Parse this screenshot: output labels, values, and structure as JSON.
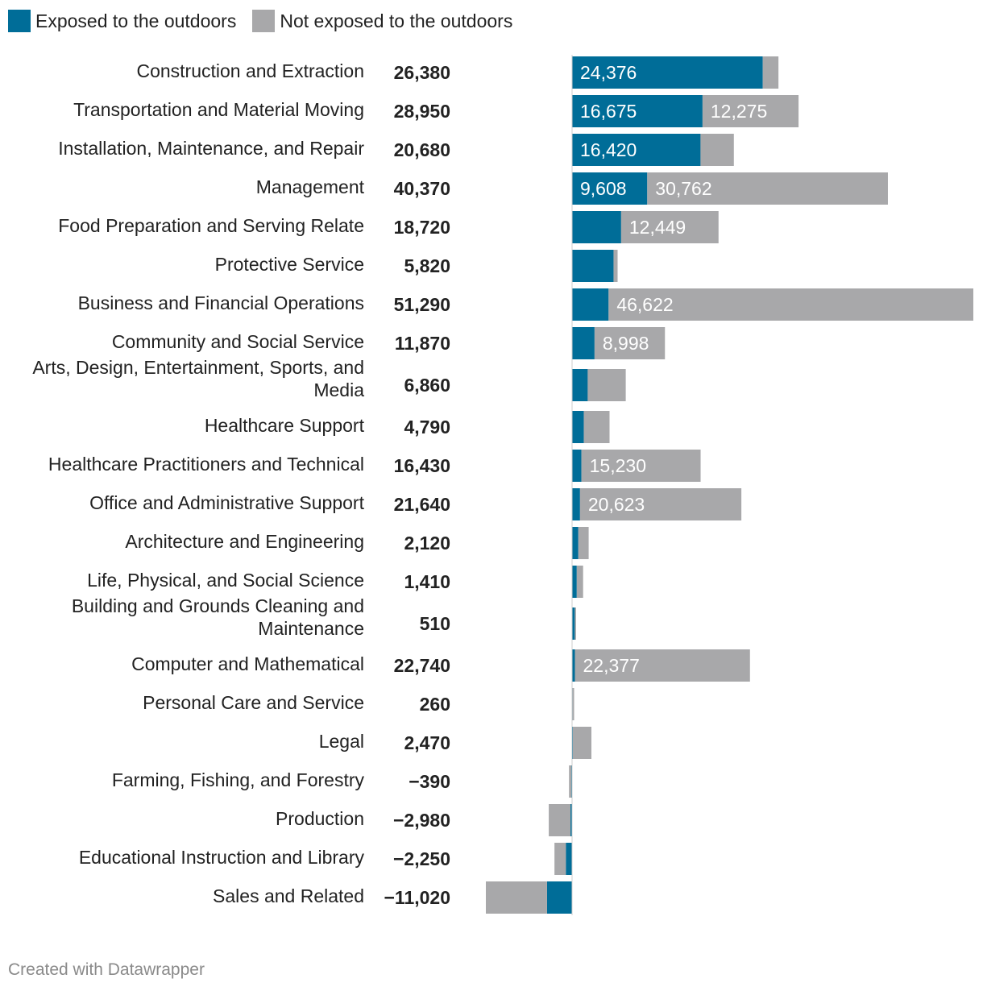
{
  "colors": {
    "exposed": "#006d98",
    "not_exposed": "#a8a8aa",
    "label_text": "#222222",
    "bar_label_text": "#ffffff"
  },
  "legend": {
    "exposed_label": "Exposed to the outdoors",
    "not_exposed_label": "Not exposed to the outdoors"
  },
  "footer": {
    "credit": "Created with Datawrapper"
  },
  "chart_data": {
    "type": "bar",
    "orientation": "horizontal",
    "stacked": true,
    "series_names": [
      "Exposed to the outdoors",
      "Not exposed to the outdoors"
    ],
    "rows": [
      {
        "label": [
          "Construction and Extraction"
        ],
        "total": "26,380",
        "exposed": 24376,
        "not_exposed": 2004,
        "exposed_label": "24,376",
        "not_exposed_label": ""
      },
      {
        "label": [
          "Transportation and Material Moving"
        ],
        "total": "28,950",
        "exposed": 16675,
        "not_exposed": 12275,
        "exposed_label": "16,675",
        "not_exposed_label": "12,275"
      },
      {
        "label": [
          "Installation, Maintenance, and Repair"
        ],
        "total": "20,680",
        "exposed": 16420,
        "not_exposed": 4260,
        "exposed_label": "16,420",
        "not_exposed_label": ""
      },
      {
        "label": [
          "Management"
        ],
        "total": "40,370",
        "exposed": 9608,
        "not_exposed": 30762,
        "exposed_label": "9,608",
        "not_exposed_label": "30,762"
      },
      {
        "label": [
          "Food Preparation and Serving Relate"
        ],
        "total": "18,720",
        "exposed": 6271,
        "not_exposed": 12449,
        "exposed_label": "",
        "not_exposed_label": "12,449"
      },
      {
        "label": [
          "Protective Service"
        ],
        "total": "5,820",
        "exposed": 5300,
        "not_exposed": 520,
        "exposed_label": "",
        "not_exposed_label": ""
      },
      {
        "label": [
          "Business and Financial Operations"
        ],
        "total": "51,290",
        "exposed": 4668,
        "not_exposed": 46622,
        "exposed_label": "",
        "not_exposed_label": "46,622"
      },
      {
        "label": [
          "Community and Social Service"
        ],
        "total": "11,870",
        "exposed": 2872,
        "not_exposed": 8998,
        "exposed_label": "",
        "not_exposed_label": "8,998"
      },
      {
        "label": [
          "Arts, Design, Entertainment, Sports, and",
          "Media"
        ],
        "total": "6,860",
        "exposed": 2000,
        "not_exposed": 4860,
        "exposed_label": "",
        "not_exposed_label": ""
      },
      {
        "label": [
          "Healthcare Support"
        ],
        "total": "4,790",
        "exposed": 1500,
        "not_exposed": 3290,
        "exposed_label": "",
        "not_exposed_label": ""
      },
      {
        "label": [
          "Healthcare Practitioners and Technical"
        ],
        "total": "16,430",
        "exposed": 1200,
        "not_exposed": 15230,
        "exposed_label": "",
        "not_exposed_label": "15,230"
      },
      {
        "label": [
          "Office and Administrative Support"
        ],
        "total": "21,640",
        "exposed": 1017,
        "not_exposed": 20623,
        "exposed_label": "",
        "not_exposed_label": "20,623"
      },
      {
        "label": [
          "Architecture and Engineering"
        ],
        "total": "2,120",
        "exposed": 800,
        "not_exposed": 1320,
        "exposed_label": "",
        "not_exposed_label": ""
      },
      {
        "label": [
          "Life, Physical, and Social Science"
        ],
        "total": "1,410",
        "exposed": 600,
        "not_exposed": 810,
        "exposed_label": "",
        "not_exposed_label": ""
      },
      {
        "label": [
          "Building and Grounds Cleaning and",
          "Maintenance"
        ],
        "total": "510",
        "exposed": 350,
        "not_exposed": 160,
        "exposed_label": "",
        "not_exposed_label": ""
      },
      {
        "label": [
          "Computer and Mathematical"
        ],
        "total": "22,740",
        "exposed": 363,
        "not_exposed": 22377,
        "exposed_label": "",
        "not_exposed_label": "22,377"
      },
      {
        "label": [
          "Personal Care and Service"
        ],
        "total": "260",
        "exposed": 60,
        "not_exposed": 200,
        "exposed_label": "",
        "not_exposed_label": ""
      },
      {
        "label": [
          "Legal"
        ],
        "total": "2,470",
        "exposed": 100,
        "not_exposed": 2370,
        "exposed_label": "",
        "not_exposed_label": ""
      },
      {
        "label": [
          "Farming, Fishing, and Forestry"
        ],
        "total": "−390",
        "exposed": -100,
        "not_exposed": -290,
        "exposed_label": "",
        "not_exposed_label": ""
      },
      {
        "label": [
          "Production"
        ],
        "total": "−2,980",
        "exposed": -200,
        "not_exposed": -2780,
        "exposed_label": "",
        "not_exposed_label": ""
      },
      {
        "label": [
          "Educational Instruction and Library"
        ],
        "total": "−2,250",
        "exposed": -800,
        "not_exposed": -1450,
        "exposed_label": "",
        "not_exposed_label": ""
      },
      {
        "label": [
          "Sales and Related"
        ],
        "total": "−11,020",
        "exposed": -3200,
        "not_exposed": -7820,
        "exposed_label": "",
        "not_exposed_label": ""
      }
    ]
  }
}
